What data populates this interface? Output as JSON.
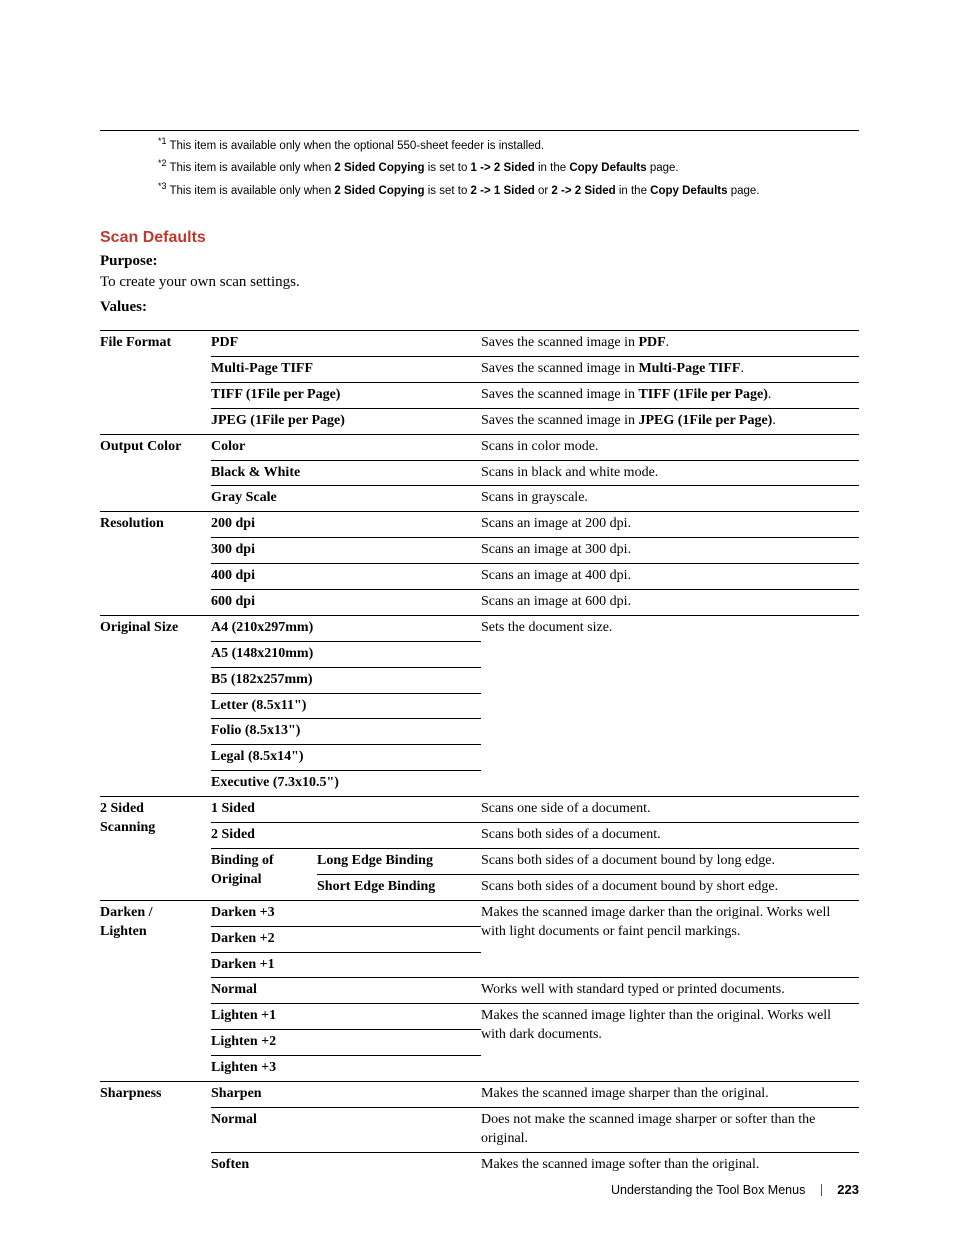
{
  "footnotes": {
    "fn1": {
      "marker": "*1",
      "pre": " This item is available only when the optional 550-sheet feeder is installed."
    },
    "fn2": {
      "marker": "*2",
      "pre": " This item is available only when ",
      "b1": "2 Sided Copying",
      "mid1": " is set to ",
      "b2": "1 -> 2 Sided",
      "mid2": " in the ",
      "b3": "Copy Defaults",
      "post": " page."
    },
    "fn3": {
      "marker": "*3",
      "pre": " This item is available only when ",
      "b1": "2 Sided Copying",
      "mid1": " is set to ",
      "b2": "2 -> 1 Sided",
      "mid2": " or ",
      "b3": "2 -> 2 Sided",
      "mid3": " in the ",
      "b4": "Copy Defaults",
      "post": " page."
    }
  },
  "section_heading": "Scan Defaults",
  "purpose_label": "Purpose:",
  "purpose_text": "To create your own scan settings.",
  "values_label": "Values:",
  "rows": {
    "file_format_label": "File Format",
    "pdf": "PDF",
    "pdf_desc_a": "Saves the scanned image in ",
    "pdf_desc_b": "PDF",
    "pdf_desc_c": ".",
    "mptiff": "Multi-Page TIFF",
    "mptiff_desc_a": "Saves the scanned image in ",
    "mptiff_desc_b": "Multi-Page TIFF",
    "mptiff_desc_c": ".",
    "tiff1": "TIFF (1File per Page)",
    "tiff1_desc_a": "Saves the scanned image in ",
    "tiff1_desc_b": "TIFF (1File per Page)",
    "tiff1_desc_c": ".",
    "jpeg1": "JPEG (1File per Page)",
    "jpeg1_desc_a": "Saves the scanned image in ",
    "jpeg1_desc_b": "JPEG (1File per Page)",
    "jpeg1_desc_c": ".",
    "output_color_label": "Output Color",
    "color": "Color",
    "color_desc": "Scans in color mode.",
    "bw": "Black & White",
    "bw_desc": "Scans in black and white mode.",
    "gray": "Gray Scale",
    "gray_desc": "Scans in grayscale.",
    "resolution_label": "Resolution",
    "r200": "200 dpi",
    "r200_desc": "Scans an image at 200 dpi.",
    "r300": "300 dpi",
    "r300_desc": "Scans an image at 300 dpi.",
    "r400": "400 dpi",
    "r400_desc": "Scans an image at 400 dpi.",
    "r600": "600 dpi",
    "r600_desc": "Scans an image at 600 dpi.",
    "original_size_label": "Original Size",
    "a4": "A4 (210x297mm)",
    "a4_desc": "Sets the document size.",
    "a5": "A5 (148x210mm)",
    "b5": "B5 (182x257mm)",
    "letter": "Letter (8.5x11\")",
    "folio": "Folio (8.5x13\")",
    "legal": "Legal (8.5x14\")",
    "exec": "Executive (7.3x10.5\")",
    "two_sided_label_a": "2 Sided",
    "two_sided_label_b": "Scanning",
    "onesided": "1 Sided",
    "onesided_desc": "Scans one side of a document.",
    "twosided": "2 Sided",
    "twosided_desc": "Scans both sides of a document.",
    "binding_a": "Binding of",
    "binding_b": "Original",
    "longedge": "Long Edge Binding",
    "longedge_desc": "Scans both sides of a document bound by long edge.",
    "shortedge": "Short Edge Binding",
    "shortedge_desc": "Scans both sides of a document bound by short edge.",
    "darken_label_a": "Darken /",
    "darken_label_b": "Lighten",
    "d3": "Darken +3",
    "d3_desc": "Makes the scanned image darker than the original. Works well with light documents or faint pencil markings.",
    "d2": "Darken +2",
    "d1": "Darken +1",
    "normal": "Normal",
    "normal_desc": "Works well with standard typed or printed documents.",
    "l1": "Lighten +1",
    "l1_desc": "Makes the scanned image lighter than the original. Works well with dark documents.",
    "l2": "Lighten +2",
    "l3": "Lighten +3",
    "sharpness_label": "Sharpness",
    "sharpen": "Sharpen",
    "sharpen_desc": "Makes the scanned image sharper than the original.",
    "snormal": "Normal",
    "snormal_desc": "Does not make the scanned image sharper or softer than the original.",
    "soften": "Soften",
    "soften_desc": "Makes the scanned image softer than the original."
  },
  "footer": {
    "chapter": "Understanding the Tool Box Menus",
    "pagenum": "223"
  }
}
